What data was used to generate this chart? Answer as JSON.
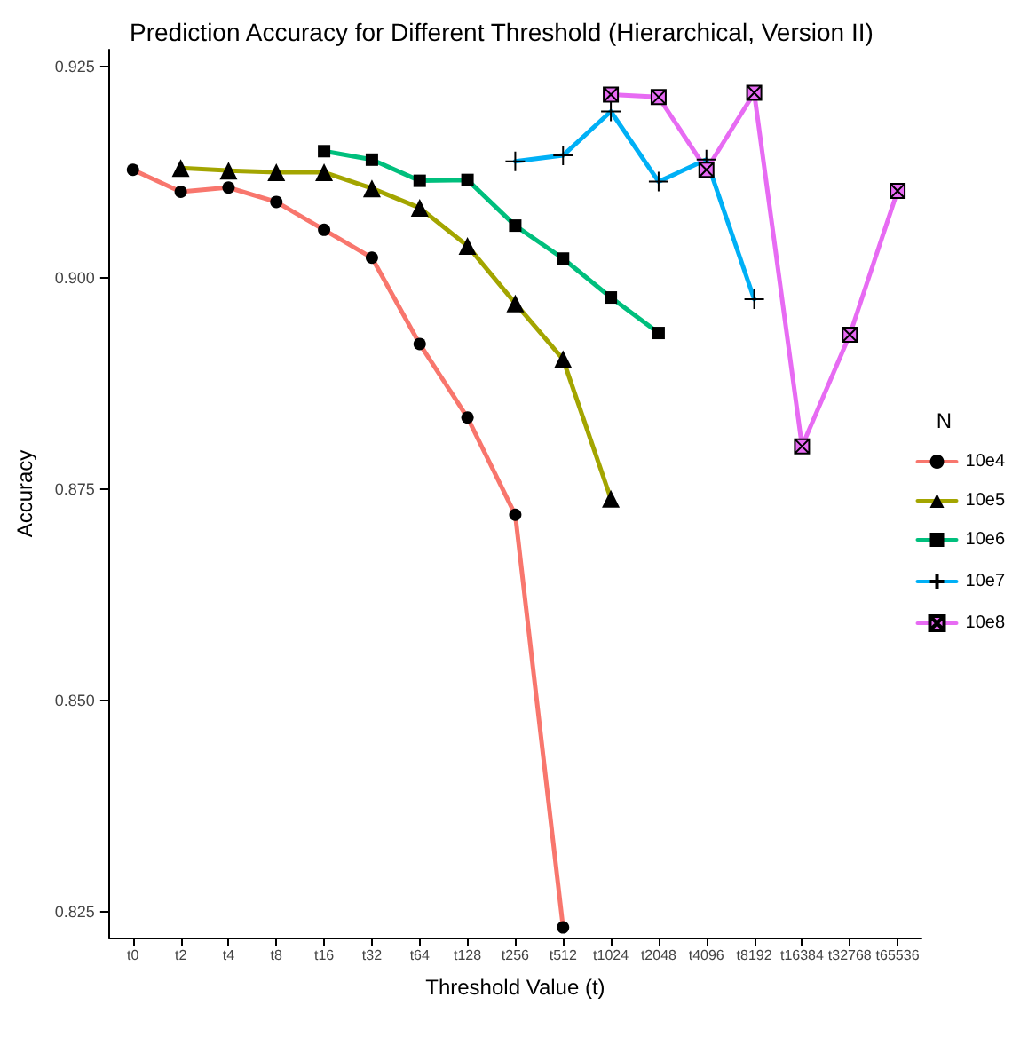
{
  "chart_data": {
    "type": "line",
    "title": "Prediction Accuracy for Different Threshold (Hierarchical, Version II)",
    "xlabel": "Threshold Value (t)",
    "ylabel": "Accuracy",
    "legend_title": "N",
    "categories": [
      "t0",
      "t2",
      "t4",
      "t8",
      "t16",
      "t32",
      "t64",
      "t128",
      "t256",
      "t512",
      "t1024",
      "t2048",
      "t4096",
      "t8192",
      "t16384",
      "t32768",
      "t65536"
    ],
    "series": [
      {
        "name": "10e4",
        "color": "#f8766d",
        "marker": "circle",
        "values": [
          0.9128,
          0.9102,
          0.9107,
          0.909,
          0.9057,
          0.9024,
          0.8922,
          0.8835,
          0.872,
          0.8232,
          null,
          null,
          null,
          null,
          null,
          null,
          null
        ]
      },
      {
        "name": "10e5",
        "color": "#a3a500",
        "marker": "triangle",
        "values": [
          null,
          0.913,
          0.9127,
          0.9125,
          0.9125,
          0.9106,
          0.9083,
          0.9038,
          0.897,
          0.8904,
          0.8739,
          null,
          null,
          null,
          null,
          null,
          null
        ]
      },
      {
        "name": "10e6",
        "color": "#00bf7d",
        "marker": "square",
        "values": [
          null,
          null,
          null,
          null,
          0.915,
          0.914,
          0.9115,
          0.9116,
          0.9062,
          0.9023,
          0.8977,
          0.8935,
          null,
          null,
          null,
          null,
          null
        ]
      },
      {
        "name": "10e7",
        "color": "#00b0f6",
        "marker": "cross",
        "values": [
          null,
          null,
          null,
          null,
          null,
          null,
          null,
          null,
          0.9138,
          0.9145,
          0.9197,
          0.9114,
          0.914,
          0.8975,
          null,
          null,
          null
        ]
      },
      {
        "name": "10e8",
        "color": "#e76bf3",
        "marker": "crossed-square",
        "values": [
          null,
          null,
          null,
          null,
          null,
          null,
          null,
          null,
          null,
          null,
          0.9217,
          0.9214,
          0.9128,
          0.9219,
          0.8801,
          0.8933,
          0.9103
        ]
      }
    ],
    "ylim": [
      0.822,
      0.927
    ],
    "yticks": [
      0.825,
      {
        "value": 0.85,
        "label": "0.850"
      },
      0.875,
      {
        "value": 0.9,
        "label": "0.900"
      },
      0.925
    ],
    "grid": false,
    "legend": "right",
    "line_style": "solid"
  }
}
